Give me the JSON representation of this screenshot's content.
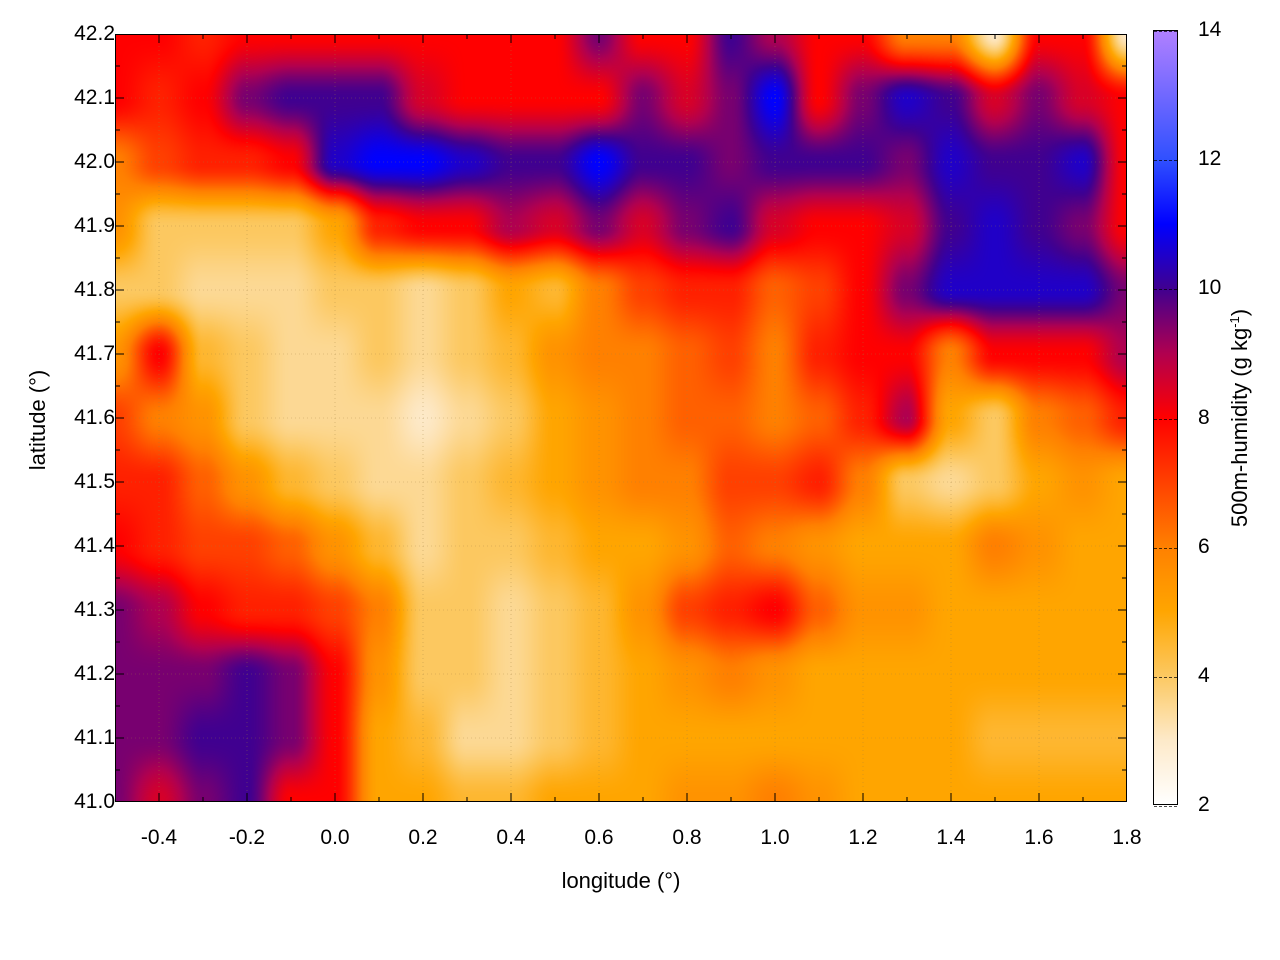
{
  "chart_data": {
    "type": "heatmap",
    "title": "",
    "xlabel": "longitude (°)",
    "ylabel": "latitude (°)",
    "colorbar_label": "500m-humidity (g kg",
    "colorbar_label_sup": "-1",
    "colorbar_label_end": ")",
    "xlim": [
      -0.5,
      1.8
    ],
    "ylim": [
      41.0,
      42.2
    ],
    "clim": [
      2,
      14
    ],
    "grid": true,
    "x_ticks": [
      "-0.4",
      "-0.2",
      "0.0",
      "0.2",
      "0.4",
      "0.6",
      "0.8",
      "1.0",
      "1.2",
      "1.4",
      "1.6",
      "1.8"
    ],
    "y_ticks": [
      "41.0",
      "41.1",
      "41.2",
      "41.3",
      "41.4",
      "41.5",
      "41.6",
      "41.7",
      "41.8",
      "41.9",
      "42.0",
      "42.1",
      "42.2"
    ],
    "colorbar_ticks": [
      "2",
      "4",
      "6",
      "8",
      "10",
      "12",
      "14"
    ],
    "colormap": [
      {
        "v": 2,
        "c": "#ffffff"
      },
      {
        "v": 3,
        "c": "#fde9c8"
      },
      {
        "v": 4,
        "c": "#fcc860"
      },
      {
        "v": 5,
        "c": "#ffa500"
      },
      {
        "v": 6,
        "c": "#ff8000"
      },
      {
        "v": 7,
        "c": "#ff4000"
      },
      {
        "v": 8,
        "c": "#ff0000"
      },
      {
        "v": 9,
        "c": "#b00050"
      },
      {
        "v": 10,
        "c": "#400090"
      },
      {
        "v": 11,
        "c": "#0000ff"
      },
      {
        "v": 12,
        "c": "#3050ff"
      },
      {
        "v": 14,
        "c": "#b080ff"
      }
    ],
    "grid_lon": [
      -0.5,
      -0.4,
      -0.3,
      -0.2,
      -0.1,
      0.0,
      0.1,
      0.2,
      0.3,
      0.4,
      0.5,
      0.6,
      0.7,
      0.8,
      0.9,
      1.0,
      1.1,
      1.2,
      1.3,
      1.4,
      1.5,
      1.6,
      1.7,
      1.8
    ],
    "grid_lat": [
      42.2,
      42.1,
      42.0,
      41.9,
      41.8,
      41.7,
      41.6,
      41.5,
      41.4,
      41.3,
      41.2,
      41.1,
      41.0
    ],
    "values": [
      [
        8,
        8,
        7.5,
        8,
        8,
        8,
        8,
        8,
        8,
        8,
        8,
        9.5,
        8,
        8,
        10,
        9,
        8,
        8,
        6,
        6,
        3,
        8,
        8,
        3
      ],
      [
        8,
        7.5,
        8,
        9.5,
        10,
        10,
        10,
        8.5,
        8,
        8,
        8,
        8,
        9.5,
        8.5,
        9.5,
        11,
        8,
        9.5,
        10.5,
        10,
        8.5,
        9.5,
        8.5,
        8
      ],
      [
        6,
        7,
        7.5,
        7.5,
        8,
        10.5,
        11,
        11,
        10.5,
        10,
        10,
        11,
        10,
        10,
        9.5,
        10,
        10,
        10,
        9.5,
        10.5,
        10,
        10,
        10.5,
        8
      ],
      [
        5.5,
        4,
        4,
        4,
        4,
        5,
        7.5,
        8,
        8,
        9,
        8.5,
        9.5,
        8.5,
        9.5,
        10,
        8.5,
        8,
        8,
        8.5,
        10,
        10.5,
        10,
        9.5,
        8
      ],
      [
        4,
        4,
        3.5,
        3.5,
        3.5,
        4,
        4,
        3.5,
        4,
        5,
        4.5,
        6,
        7,
        7.5,
        7.5,
        6.5,
        7,
        8,
        9.5,
        10.5,
        10.5,
        10.5,
        10.5,
        9.5
      ],
      [
        5.5,
        8,
        4.5,
        4,
        3.5,
        3.5,
        4,
        3.5,
        4,
        4.5,
        5.5,
        6,
        6,
        6.5,
        7,
        6,
        7.5,
        8,
        8,
        6,
        8,
        8,
        8,
        9
      ],
      [
        7,
        6,
        5.5,
        4,
        3.5,
        3.5,
        3.5,
        3,
        3.5,
        4,
        5,
        5.5,
        6,
        6.5,
        6.5,
        6,
        6.5,
        7.5,
        9,
        5,
        4,
        6,
        6.5,
        7.5
      ],
      [
        7.5,
        7.5,
        6.5,
        5.5,
        4.5,
        4,
        3.5,
        3.5,
        4,
        4.5,
        5,
        5.5,
        6,
        6,
        7,
        7,
        7.5,
        6,
        4,
        3.5,
        4,
        5,
        5.5,
        5
      ],
      [
        8,
        7.5,
        7,
        7,
        6.5,
        5.5,
        4.5,
        3.5,
        4,
        4,
        4.5,
        5,
        5,
        5.5,
        6.5,
        6,
        5.5,
        5,
        5,
        5,
        6,
        5.5,
        5,
        5
      ],
      [
        9.5,
        9,
        8,
        7.5,
        7.5,
        7,
        6,
        4,
        4,
        3.5,
        4,
        4.5,
        5.5,
        7,
        7.5,
        8,
        6.5,
        5.5,
        5.5,
        5,
        5,
        5,
        5,
        5
      ],
      [
        9.5,
        9.5,
        9.5,
        10,
        9.5,
        8,
        5.5,
        4,
        4,
        3.5,
        4,
        4.5,
        5,
        5.5,
        6,
        5.5,
        5,
        5,
        5,
        5,
        5,
        5,
        5,
        5
      ],
      [
        9.5,
        9.5,
        10,
        10,
        9.5,
        8,
        5,
        4.5,
        3.5,
        3.5,
        4,
        4.5,
        5,
        5,
        5,
        5,
        5,
        5,
        5,
        5,
        4.5,
        4.5,
        4.5,
        4.5
      ],
      [
        9.5,
        8.5,
        9.5,
        10,
        8,
        8,
        5,
        5,
        4.5,
        4.5,
        5,
        5,
        5,
        5.5,
        5.5,
        6,
        5.5,
        5,
        5,
        5,
        5,
        5,
        5,
        5
      ]
    ]
  }
}
